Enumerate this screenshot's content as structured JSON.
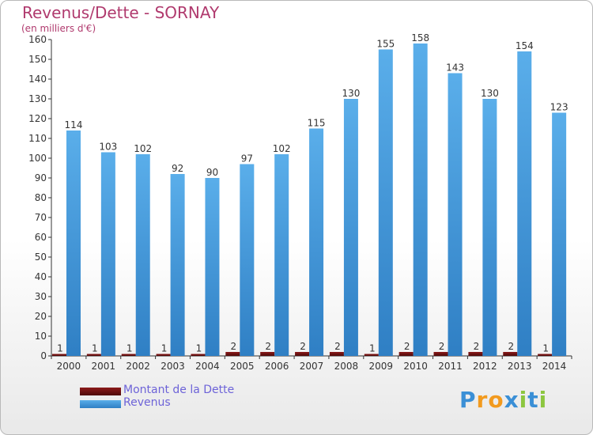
{
  "header": {
    "title": "Revenus/Dette - SORNAY",
    "subtitle": "(en milliers d'€)"
  },
  "chart_data": {
    "type": "bar",
    "title": "Revenus/Dette - SORNAY",
    "ylabel": "(en milliers d'€)",
    "xlabel": "",
    "ylim": [
      0,
      160
    ],
    "yticks": [
      0,
      10,
      20,
      30,
      40,
      50,
      60,
      70,
      80,
      90,
      100,
      110,
      120,
      130,
      140,
      150,
      160
    ],
    "grid": false,
    "legend_placement": "bottom-left",
    "categories": [
      "2000",
      "2001",
      "2002",
      "2003",
      "2004",
      "2005",
      "2006",
      "2007",
      "2008",
      "2009",
      "2010",
      "2011",
      "2012",
      "2013",
      "2014"
    ],
    "series": [
      {
        "name": "Montant de la Dette",
        "color": "#6b0f0f",
        "values": [
          1,
          1,
          1,
          1,
          1,
          2,
          2,
          2,
          2,
          1,
          2,
          2,
          2,
          2,
          1
        ]
      },
      {
        "name": "Revenus",
        "color": "#3d97d9",
        "values": [
          114,
          103,
          102,
          92,
          90,
          97,
          102,
          115,
          130,
          155,
          158,
          143,
          130,
          154,
          123
        ]
      }
    ]
  },
  "legend": {
    "items": [
      {
        "label": "Montant de la Dette",
        "color": "#6b0f0f"
      },
      {
        "label": "Revenus",
        "color": "#3d97d9"
      }
    ]
  },
  "logo": {
    "letters": [
      "P",
      "r",
      "o",
      "x",
      "i",
      "t",
      "i"
    ],
    "colors": [
      "#3a8fd6",
      "#f29a1e",
      "#f29a1e",
      "#3a8fd6",
      "#8cc63f",
      "#3a8fd6",
      "#8cc63f"
    ]
  }
}
